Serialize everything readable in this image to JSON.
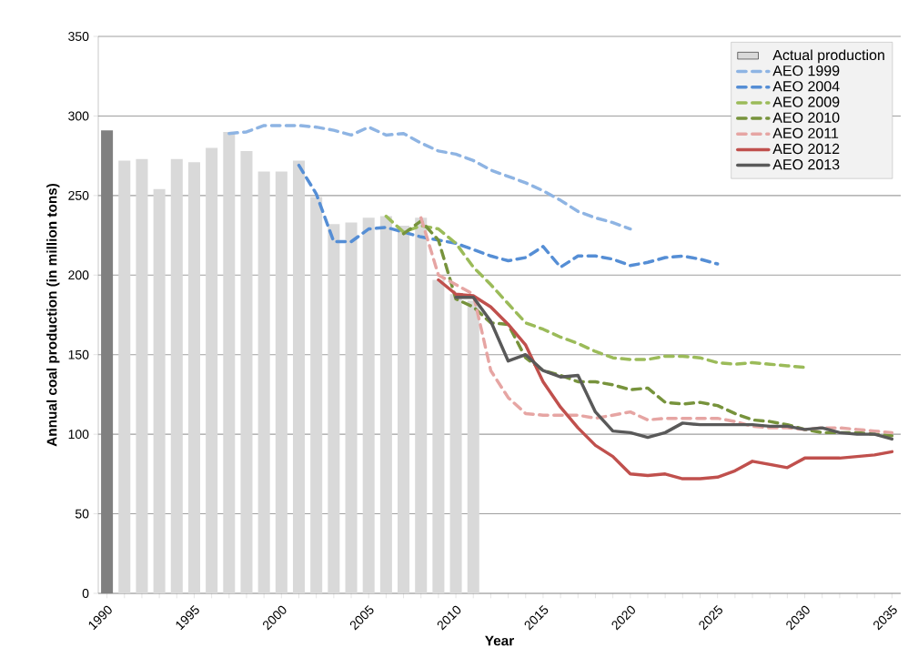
{
  "chart_data": {
    "type": "line",
    "xlabel": "Year",
    "ylabel": "Annual coal production (in million tons)",
    "xlim": [
      1989.5,
      2035.5
    ],
    "ylim": [
      0,
      350
    ],
    "xticks": [
      1990,
      {
        "value": 1991,
        "label": null
      },
      {
        "value": 1992,
        "label": null
      },
      {
        "value": 1993,
        "label": null
      },
      {
        "value": 1994,
        "label": null
      },
      1995,
      {
        "value": 1996,
        "label": null
      },
      {
        "value": 1997,
        "label": null
      },
      {
        "value": 1998,
        "label": null
      },
      {
        "value": 1999,
        "label": null
      },
      2000,
      {
        "value": 2001,
        "label": null
      },
      {
        "value": 2002,
        "label": null
      },
      {
        "value": 2003,
        "label": null
      },
      {
        "value": 2004,
        "label": null
      },
      2005,
      {
        "value": 2006,
        "label": null
      },
      {
        "value": 2007,
        "label": null
      },
      {
        "value": 2008,
        "label": null
      },
      {
        "value": 2009,
        "label": null
      },
      2010,
      {
        "value": 2011,
        "label": null
      },
      {
        "value": 2012,
        "label": null
      },
      {
        "value": 2013,
        "label": null
      },
      {
        "value": 2014,
        "label": null
      },
      2015,
      {
        "value": 2016,
        "label": null
      },
      {
        "value": 2017,
        "label": null
      },
      {
        "value": 2018,
        "label": null
      },
      {
        "value": 2019,
        "label": null
      },
      2020,
      {
        "value": 2021,
        "label": null
      },
      {
        "value": 2022,
        "label": null
      },
      {
        "value": 2023,
        "label": null
      },
      {
        "value": 2024,
        "label": null
      },
      2025,
      {
        "value": 2026,
        "label": null
      },
      {
        "value": 2027,
        "label": null
      },
      {
        "value": 2028,
        "label": null
      },
      {
        "value": 2029,
        "label": null
      },
      2030,
      {
        "value": 2031,
        "label": null
      },
      {
        "value": 2032,
        "label": null
      },
      {
        "value": 2033,
        "label": null
      },
      {
        "value": 2034,
        "label": null
      },
      2035
    ],
    "yticks": [
      0,
      50,
      100,
      150,
      200,
      250,
      300,
      350
    ],
    "grid": "y",
    "legend": "top right",
    "marker": "none",
    "series": [
      {
        "name": "Actual production",
        "type": "bar",
        "color": "#d9d9d9",
        "colors": [
          "#808080",
          "#d9d9d9",
          "#d9d9d9",
          "#d9d9d9",
          "#d9d9d9",
          "#d9d9d9",
          "#d9d9d9",
          "#d9d9d9",
          "#d9d9d9",
          "#d9d9d9",
          "#d9d9d9",
          "#d9d9d9",
          "#d9d9d9",
          "#d9d9d9",
          "#d9d9d9",
          "#d9d9d9",
          "#d9d9d9",
          "#d9d9d9",
          "#d9d9d9",
          "#d9d9d9",
          "#d9d9d9",
          "#d9d9d9"
        ],
        "x": [
          1990,
          1991,
          1992,
          1993,
          1994,
          1995,
          1996,
          1997,
          1998,
          1999,
          2000,
          2001,
          2002,
          2003,
          2004,
          2005,
          2006,
          2007,
          2008,
          2009,
          2010,
          2011
        ],
        "values": [
          291,
          272,
          273,
          254,
          273,
          271,
          280,
          290,
          278,
          265,
          265,
          272,
          249,
          232,
          233,
          236,
          237,
          231,
          236,
          197,
          188,
          184
        ]
      },
      {
        "name": "AEO 1999",
        "color": "#8eb4e3",
        "line_style": "dashed",
        "x": [
          1997,
          1998,
          1999,
          2000,
          2001,
          2002,
          2003,
          2004,
          2005,
          2006,
          2007,
          2008,
          2009,
          2010,
          2011,
          2012,
          2013,
          2014,
          2015,
          2016,
          2017,
          2018,
          2019,
          2020
        ],
        "values": [
          289,
          290,
          294,
          294,
          294,
          293,
          291,
          288,
          293,
          288,
          289,
          283,
          278,
          276,
          272,
          266,
          262,
          258,
          253,
          247,
          240,
          236,
          233,
          229
        ]
      },
      {
        "name": "AEO 2004",
        "color": "#558ed5",
        "line_style": "dashed",
        "x": [
          2001,
          2002,
          2003,
          2004,
          2005,
          2006,
          2007,
          2008,
          2009,
          2010,
          2011,
          2012,
          2013,
          2014,
          2015,
          2016,
          2017,
          2018,
          2019,
          2020,
          2021,
          2022,
          2023,
          2024,
          2025
        ],
        "values": [
          269,
          251,
          221,
          221,
          229,
          230,
          227,
          224,
          222,
          220,
          216,
          212,
          209,
          211,
          218,
          205,
          212,
          212,
          210,
          206,
          208,
          211,
          212,
          210,
          207
        ]
      },
      {
        "name": "AEO 2009",
        "color": "#9bbb59",
        "line_style": "dashed",
        "x": [
          2006,
          2007,
          2008,
          2009,
          2010,
          2011,
          2012,
          2013,
          2014,
          2015,
          2016,
          2017,
          2018,
          2019,
          2020,
          2021,
          2022,
          2023,
          2024,
          2025,
          2026,
          2027,
          2028,
          2029,
          2030
        ],
        "values": [
          237,
          227,
          231,
          229,
          220,
          205,
          194,
          182,
          170,
          166,
          161,
          157,
          152,
          148,
          147,
          147,
          149,
          149,
          148,
          145,
          144,
          145,
          144,
          143,
          142
        ]
      },
      {
        "name": "AEO 2010",
        "color": "#77933c",
        "line_style": "dashed",
        "x": [
          2007,
          2008,
          2009,
          2010,
          2011,
          2012,
          2013,
          2014,
          2015,
          2016,
          2017,
          2018,
          2019,
          2020,
          2021,
          2022,
          2023,
          2024,
          2025,
          2026,
          2027,
          2028,
          2029,
          2030,
          2031,
          2032,
          2033,
          2034,
          2035
        ],
        "values": [
          226,
          234,
          222,
          185,
          180,
          170,
          169,
          148,
          140,
          137,
          133,
          133,
          131,
          128,
          129,
          120,
          119,
          120,
          118,
          113,
          109,
          108,
          106,
          103,
          101,
          101,
          101,
          100,
          99
        ]
      },
      {
        "name": "AEO 2011",
        "color": "#e6a5a3",
        "line_style": "dashed",
        "x": [
          2008,
          2009,
          2010,
          2011,
          2012,
          2013,
          2014,
          2015,
          2016,
          2017,
          2018,
          2019,
          2020,
          2021,
          2022,
          2023,
          2024,
          2025,
          2026,
          2027,
          2028,
          2029,
          2030,
          2031,
          2032,
          2033,
          2034,
          2035
        ],
        "values": [
          236,
          200,
          194,
          188,
          140,
          123,
          113,
          112,
          112,
          112,
          110,
          112,
          114,
          109,
          110,
          110,
          110,
          110,
          108,
          105,
          104,
          104,
          103,
          104,
          104,
          103,
          102,
          101
        ]
      },
      {
        "name": "AEO 2012",
        "color": "#c0504d",
        "line_style": "solid",
        "x": [
          2009,
          2010,
          2011,
          2012,
          2013,
          2014,
          2015,
          2016,
          2017,
          2018,
          2019,
          2020,
          2021,
          2022,
          2023,
          2024,
          2025,
          2026,
          2027,
          2028,
          2029,
          2030,
          2031,
          2032,
          2033,
          2034,
          2035
        ],
        "values": [
          197,
          188,
          187,
          180,
          169,
          156,
          133,
          117,
          104,
          93,
          86,
          75,
          74,
          75,
          72,
          72,
          73,
          77,
          83,
          81,
          79,
          85,
          85,
          85,
          86,
          87,
          89
        ]
      },
      {
        "name": "AEO 2013",
        "color": "#595959",
        "line_style": "solid",
        "x": [
          2010,
          2011,
          2012,
          2013,
          2014,
          2015,
          2016,
          2017,
          2018,
          2019,
          2020,
          2021,
          2022,
          2023,
          2024,
          2025,
          2026,
          2027,
          2028,
          2029,
          2030,
          2031,
          2032,
          2033,
          2034,
          2035
        ],
        "values": [
          186,
          186,
          171,
          146,
          150,
          140,
          136,
          137,
          114,
          102,
          101,
          98,
          101,
          107,
          106,
          106,
          106,
          106,
          105,
          105,
          103,
          104,
          101,
          100,
          100,
          97
        ]
      }
    ]
  }
}
